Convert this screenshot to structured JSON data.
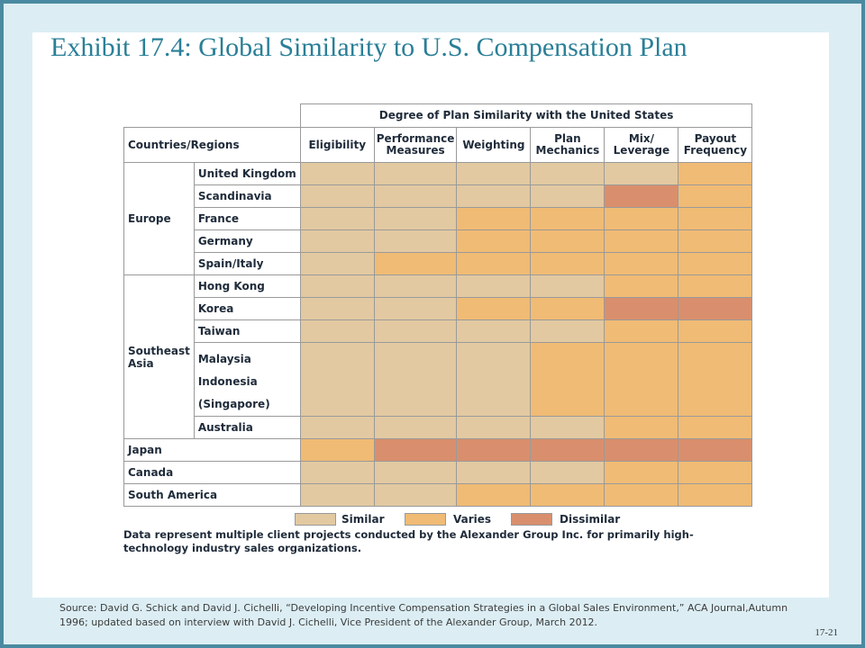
{
  "title": "Exhibit 17.4: Global Similarity to U.S. Compensation Plan",
  "table": {
    "super_header": "Degree of Plan Similarity with the United States",
    "row_header": "Countries/Regions",
    "columns": [
      "Eligibility",
      "Performance Measures",
      "Weighting",
      "Plan Mechanics",
      "Mix/ Leverage",
      "Payout Frequency"
    ],
    "groups": [
      {
        "label": "Europe",
        "rows": [
          {
            "name": "United Kingdom",
            "ratings": [
              "Similar",
              "Similar",
              "Similar",
              "Similar",
              "Similar",
              "Varies"
            ]
          },
          {
            "name": "Scandinavia",
            "ratings": [
              "Similar",
              "Similar",
              "Similar",
              "Similar",
              "Dissimilar",
              "Varies"
            ]
          },
          {
            "name": "France",
            "ratings": [
              "Similar",
              "Similar",
              "Varies",
              "Varies",
              "Varies",
              "Varies"
            ]
          },
          {
            "name": "Germany",
            "ratings": [
              "Similar",
              "Similar",
              "Varies",
              "Varies",
              "Varies",
              "Varies"
            ]
          },
          {
            "name": "Spain/Italy",
            "ratings": [
              "Similar",
              "Varies",
              "Varies",
              "Varies",
              "Varies",
              "Varies"
            ]
          }
        ]
      },
      {
        "label": "Southeast Asia",
        "rows": [
          {
            "name": "Hong Kong",
            "ratings": [
              "Similar",
              "Similar",
              "Similar",
              "Similar",
              "Varies",
              "Varies"
            ]
          },
          {
            "name": "Korea",
            "ratings": [
              "Similar",
              "Similar",
              "Varies",
              "Varies",
              "Dissimilar",
              "Dissimilar"
            ]
          },
          {
            "name": "Taiwan",
            "ratings": [
              "Similar",
              "Similar",
              "Similar",
              "Similar",
              "Varies",
              "Varies"
            ]
          },
          {
            "name": "Malaysia\nIndonesia\n(Singapore)",
            "ratings": [
              "Similar",
              "Similar",
              "Similar",
              "Varies",
              "Varies",
              "Varies"
            ]
          },
          {
            "name": "Australia",
            "ratings": [
              "Similar",
              "Similar",
              "Similar",
              "Similar",
              "Varies",
              "Varies"
            ]
          }
        ]
      },
      {
        "label": "Japan",
        "rows": [
          {
            "name": "",
            "ratings": [
              "Varies",
              "Dissimilar",
              "Dissimilar",
              "Dissimilar",
              "Dissimilar",
              "Dissimilar"
            ]
          }
        ]
      },
      {
        "label": "Canada",
        "rows": [
          {
            "name": "",
            "ratings": [
              "Similar",
              "Similar",
              "Similar",
              "Similar",
              "Varies",
              "Varies"
            ]
          }
        ]
      },
      {
        "label": "South America",
        "rows": [
          {
            "name": "",
            "ratings": [
              "Similar",
              "Similar",
              "Varies",
              "Varies",
              "Varies",
              "Varies"
            ]
          }
        ]
      }
    ]
  },
  "legend": [
    {
      "label": "Similar",
      "color": "#e2c9a1"
    },
    {
      "label": "Varies",
      "color": "#f0bb74"
    },
    {
      "label": "Dissimilar",
      "color": "#d98f6d"
    }
  ],
  "note": "Data represent multiple client projects conducted by the Alexander Group Inc. for primarily high-technology industry sales organizations.",
  "source": "Source: David G. Schick and David J. Cichelli, “Developing Incentive Compensation Strategies in a Global Sales Environment,” ACA Journal,Autumn 1996; updated based on interview with David J. Cichelli, Vice President of the Alexander Group, March 2012.",
  "page_number": "17-21"
}
